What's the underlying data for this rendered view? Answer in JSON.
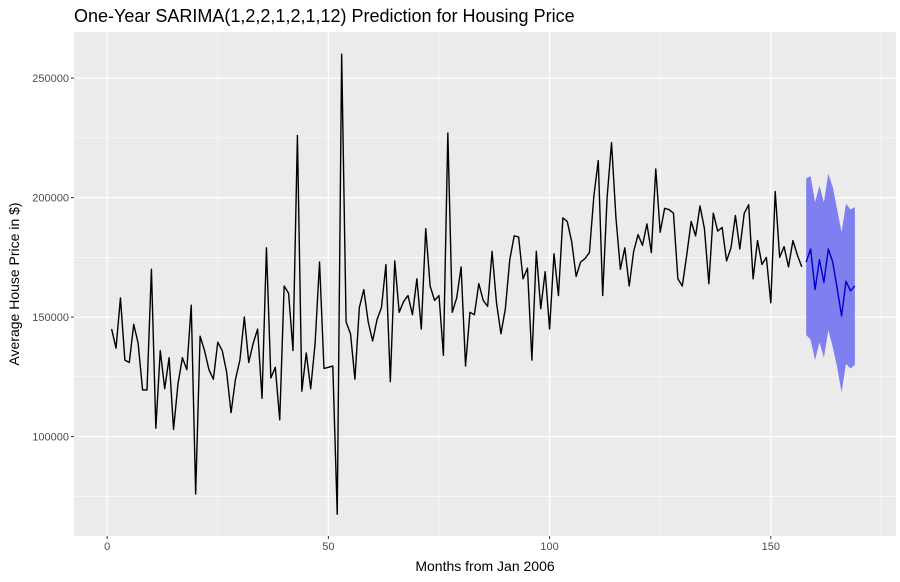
{
  "chart_data": {
    "type": "line",
    "title": "One-Year SARIMA(1,2,2,1,2,1,12) Prediction for Housing Price",
    "xlabel": "Months from Jan 2006",
    "ylabel": "Average House Price in $)",
    "xlim": [
      -7.5,
      178.3
    ],
    "ylim": [
      58400,
      269300
    ],
    "x_ticks": [
      0,
      50,
      100,
      150
    ],
    "y_ticks": [
      100000,
      150000,
      200000,
      250000
    ],
    "grid": true,
    "colors": {
      "observed": "#000000",
      "forecast": "#0000cd",
      "interval": "#7f7fef",
      "panel": "#ebebeb",
      "grid": "#ffffff"
    },
    "series": [
      {
        "role": "observed",
        "x_start": 1,
        "values": [
          145000,
          137000,
          158000,
          132000,
          131000,
          147000,
          139000,
          119500,
          119500,
          170000,
          103500,
          136000,
          120000,
          133000,
          103000,
          122000,
          133000,
          128000,
          155000,
          76000,
          142000,
          136000,
          128000,
          124000,
          139500,
          136000,
          127000,
          110000,
          124000,
          132000,
          150000,
          131000,
          139000,
          145000,
          116000,
          179000,
          124500,
          129000,
          107000,
          163000,
          160000,
          136000,
          226000,
          119000,
          135000,
          120000,
          139000,
          173000,
          128500,
          129000,
          129500,
          67500,
          260000,
          148000,
          143000,
          124000,
          154000,
          161500,
          148000,
          140000,
          149000,
          154000,
          172000,
          123000,
          173500,
          152000,
          156500,
          159000,
          151000,
          166000,
          145000,
          187000,
          163000,
          157000,
          159000,
          134000,
          227000,
          152000,
          158000,
          171000,
          129500,
          152000,
          151000,
          164000,
          157000,
          154500,
          177500,
          156000,
          143000,
          153500,
          174000,
          184000,
          183500,
          166000,
          170500,
          132000,
          177500,
          153500,
          169000,
          145000,
          176500,
          159000,
          191500,
          190000,
          181500,
          167000,
          173000,
          174500,
          177000,
          200500,
          215500,
          159000,
          200000,
          223000,
          191500,
          170000,
          179000,
          163000,
          177500,
          184500,
          180000,
          189000,
          177000,
          212000,
          185500,
          195500,
          195000,
          193500,
          166000,
          163000,
          176000,
          190000,
          184000,
          196500,
          187000,
          164000,
          193500,
          186000,
          187500,
          173500,
          179000,
          192500,
          178500,
          193500,
          197000,
          166000,
          182000,
          172000,
          175000,
          156000,
          202500,
          175000,
          179500,
          171000,
          182000,
          176000,
          171000
        ]
      },
      {
        "role": "forecast",
        "x_start": 158,
        "values": [
          173000,
          178500,
          161500,
          174000,
          164500,
          178500,
          173000,
          162000,
          150500,
          165000,
          161000,
          163000
        ],
        "upper": [
          208000,
          209000,
          198000,
          205000,
          198000,
          210000,
          204500,
          195000,
          185500,
          197500,
          195000,
          196000
        ],
        "lower": [
          142500,
          140500,
          132000,
          139500,
          133000,
          144500,
          137500,
          129000,
          118500,
          130500,
          128500,
          130000
        ]
      }
    ]
  }
}
